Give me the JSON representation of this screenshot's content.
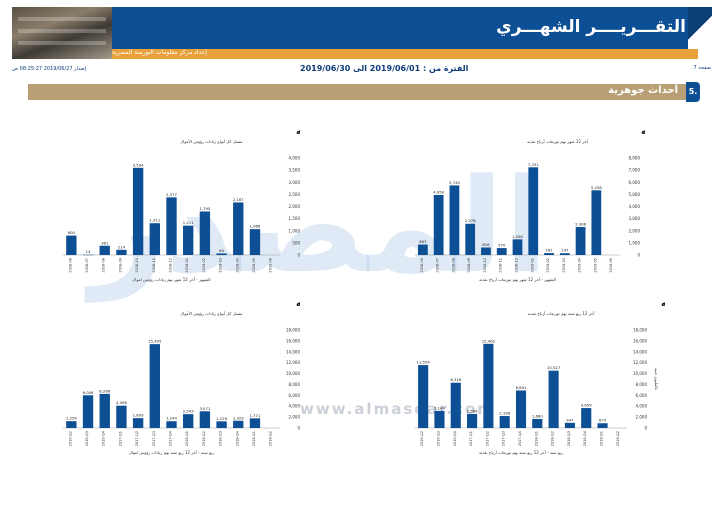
{
  "header": {
    "title": "التقـــريــــر الشهـــري",
    "source": "إعداد مركز معلومات البورصة المصرية",
    "period": "الفترة من : 2019/06/01 الى 2019/06/30",
    "page": "صفحة 7",
    "issued": "إصدار 2019/06/27 08:25:27 ص",
    "colors": {
      "blue": "#0d4f95",
      "orange": "#e9a23b",
      "bar": "#0d4f95"
    }
  },
  "section": {
    "number": "5.",
    "title": "أحداث جوهرية"
  },
  "watermark": {
    "text": "المصدر",
    "site": "www.almasdar.com"
  },
  "charts": [
    {
      "id": "div-monthly",
      "title": "توزيعات الأرباح النقدية شهريا بالمليون جنيه",
      "subtitle": "آخر 12 شهر بهم توزيعات أرباح نقدية",
      "xtitle": "الشهور - آخر 12 شهر بهم توزيعات أرباح نقدية",
      "ylabel": "بالمليون جنيه",
      "chart_data": {
        "type": "bar",
        "categories": [
          "2018-06",
          "2018-07",
          "2018-08",
          "2018-09",
          "2018-10",
          "2018-11",
          "2018-12",
          "2019-01",
          "2019-02",
          "2019-03",
          "2019-04",
          "2019-05",
          "2019-06"
        ],
        "values": [
          863,
          4950,
          5740,
          2578,
          616,
          570,
          1290,
          7231,
          161,
          147,
          2308,
          5338,
          0
        ],
        "data_labels": [
          "863",
          "4,950",
          "5,740",
          "2,578",
          "616",
          "570",
          "1,290",
          "7,231",
          "161",
          "147",
          "2,308",
          "5,338",
          ""
        ],
        "yticks": [
          "0",
          "1,000",
          "2,000",
          "3,000",
          "4,000",
          "5,000",
          "6,000",
          "7,000",
          "8,000"
        ],
        "ylim": [
          0,
          8000
        ]
      }
    },
    {
      "id": "cap-monthly",
      "title": "زيادات رؤوس الأموال شهريا بالمليون جنيه",
      "subtitle": "تشمل كل أنواع زيادات رؤوس الأموال",
      "xtitle": "الشهور - آخر 12 شهر بهم زيادات رؤوس اموال",
      "ylabel": "بالمليون جنيه",
      "chart_data": {
        "type": "bar",
        "categories": [
          "2018-06",
          "2018-07",
          "2018-08",
          "2018-09",
          "2018-10",
          "2018-11",
          "2018-12",
          "2019-01",
          "2019-02",
          "2019-03",
          "2019-04",
          "2019-05",
          "2019-06"
        ],
        "values": [
          800,
          14,
          381,
          214,
          3594,
          1311,
          2377,
          1211,
          1795,
          64,
          2167,
          1066,
          0
        ],
        "data_labels": [
          "800",
          "14",
          "381",
          "214",
          "3,594",
          "1,311",
          "2,377",
          "1,211",
          "1,795",
          "64",
          "2,167",
          "1,066",
          ""
        ],
        "yticks": [
          "0",
          "500",
          "1,000",
          "1,500",
          "2,000",
          "2,500",
          "3,000",
          "3,500",
          "4,000"
        ],
        "ylim": [
          0,
          4000
        ]
      }
    },
    {
      "id": "div-quarterly",
      "title": "توزيعات الأرباح النقدية الربع سنويه بالمليون جنيه",
      "subtitle": "آخر 12 ربع سنة بهم توزيعات أرباح نقدية",
      "xtitle": "ربع سنة - آخر 12 ربع سنة بهم توزيعات أرباح نقدية",
      "ylabel": "بالمليون جنيه",
      "chart_data": {
        "type": "bar",
        "categories": [
          "2016-Q2",
          "2016-Q3",
          "2016-Q4",
          "2017-Q1",
          "2017-Q2",
          "2017-Q3",
          "2017-Q4",
          "2018-Q1",
          "2018-Q2",
          "2018-Q3",
          "2018-Q4",
          "2019-Q1",
          "2019-Q2"
        ],
        "values": [
          11554,
          3144,
          8316,
          2569,
          15462,
          2196,
          6891,
          1660,
          10527,
          947,
          3659,
          873,
          0
        ],
        "data_labels": [
          "11,554",
          "3,144",
          "8,316",
          "2,569",
          "15,462",
          "2,196",
          "6,891",
          "1,660",
          "10,527",
          "947",
          "3,659",
          "873",
          ""
        ],
        "yticks": [
          "0",
          "2,000",
          "4,000",
          "6,000",
          "8,000",
          "10,000",
          "12,000",
          "14,000",
          "16,000",
          "18,000"
        ],
        "ylim": [
          0,
          18000
        ]
      }
    },
    {
      "id": "cap-quarterly",
      "title": "زيادات رؤوس الأموال الربع سنويه بالمليون جنيه",
      "subtitle": "تشمل كل أنواع زيادات رؤوس الأموال",
      "xtitle": "ربع سنة - آخر 12 ربع سنة بهم زيادات رؤوس اموال",
      "ylabel": "بالمليون جنيه",
      "chart_data": {
        "type": "bar",
        "categories": [
          "2016-Q2",
          "2016-Q3",
          "2016-Q4",
          "2017-Q1",
          "2017-Q2",
          "2017-Q3",
          "2017-Q4",
          "2018-Q1",
          "2018-Q2",
          "2018-Q3",
          "2018-Q4",
          "2019-Q1",
          "2019-Q2"
        ],
        "values": [
          1254,
          6006,
          6266,
          4098,
          1809,
          15405,
          1244,
          2543,
          3071,
          1226,
          1329,
          1771,
          0
        ],
        "data_labels": [
          "1,254",
          "6,006",
          "6,266",
          "4,098",
          "1,809",
          "15,405",
          "1,244",
          "2,543",
          "3,071",
          "1,226",
          "1,329",
          "1,771",
          ""
        ],
        "yticks": [
          "0",
          "2,000",
          "4,000",
          "6,000",
          "8,000",
          "10,000",
          "12,000",
          "14,000",
          "16,000",
          "18,000"
        ],
        "ylim": [
          0,
          18000
        ]
      }
    }
  ]
}
